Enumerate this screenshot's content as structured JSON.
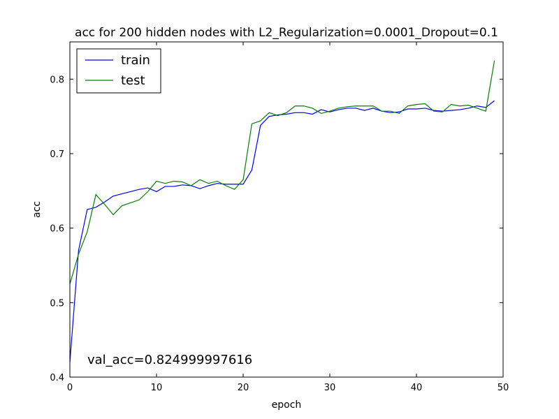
{
  "chart_data": {
    "type": "line",
    "title": "acc for 200 hidden nodes with L2_Regularization=0.0001_Dropout=0.1",
    "xlabel": "epoch",
    "ylabel": "acc",
    "xlim": [
      0,
      50
    ],
    "ylim": [
      0.4,
      0.85
    ],
    "x_ticks": [
      0,
      10,
      20,
      30,
      40,
      50
    ],
    "y_ticks": [
      0.4,
      0.5,
      0.6,
      0.7,
      0.8
    ],
    "x_tick_labels": [
      "0",
      "10",
      "20",
      "30",
      "40",
      "50"
    ],
    "y_tick_labels": [
      "0.4",
      "0.5",
      "0.6",
      "0.7",
      "0.8"
    ],
    "grid": false,
    "legend_position": "top-left",
    "annotation": "val_acc=0.824999997616",
    "x": [
      0,
      1,
      2,
      3,
      4,
      5,
      6,
      7,
      8,
      9,
      10,
      11,
      12,
      13,
      14,
      15,
      16,
      17,
      18,
      19,
      20,
      21,
      22,
      23,
      24,
      25,
      26,
      27,
      28,
      29,
      30,
      31,
      32,
      33,
      34,
      35,
      36,
      37,
      38,
      39,
      40,
      41,
      42,
      43,
      44,
      45,
      46,
      47,
      48,
      49
    ],
    "series": [
      {
        "name": "train",
        "color": "#0000ff",
        "values": [
          0.42,
          0.57,
          0.625,
          0.628,
          0.635,
          0.643,
          0.646,
          0.649,
          0.652,
          0.654,
          0.649,
          0.656,
          0.656,
          0.658,
          0.657,
          0.653,
          0.657,
          0.66,
          0.659,
          0.659,
          0.659,
          0.678,
          0.738,
          0.75,
          0.752,
          0.753,
          0.755,
          0.755,
          0.753,
          0.759,
          0.756,
          0.759,
          0.761,
          0.761,
          0.758,
          0.761,
          0.757,
          0.755,
          0.756,
          0.76,
          0.76,
          0.761,
          0.758,
          0.757,
          0.758,
          0.759,
          0.761,
          0.764,
          0.762,
          0.771
        ]
      },
      {
        "name": "test",
        "color": "#008000",
        "values": [
          0.525,
          0.565,
          0.595,
          0.645,
          0.632,
          0.618,
          0.63,
          0.634,
          0.638,
          0.649,
          0.663,
          0.66,
          0.663,
          0.662,
          0.657,
          0.665,
          0.66,
          0.663,
          0.657,
          0.652,
          0.665,
          0.74,
          0.744,
          0.755,
          0.751,
          0.755,
          0.764,
          0.764,
          0.761,
          0.754,
          0.757,
          0.761,
          0.763,
          0.764,
          0.764,
          0.764,
          0.757,
          0.757,
          0.754,
          0.764,
          0.766,
          0.767,
          0.757,
          0.756,
          0.766,
          0.764,
          0.765,
          0.761,
          0.757,
          0.825
        ]
      }
    ]
  }
}
